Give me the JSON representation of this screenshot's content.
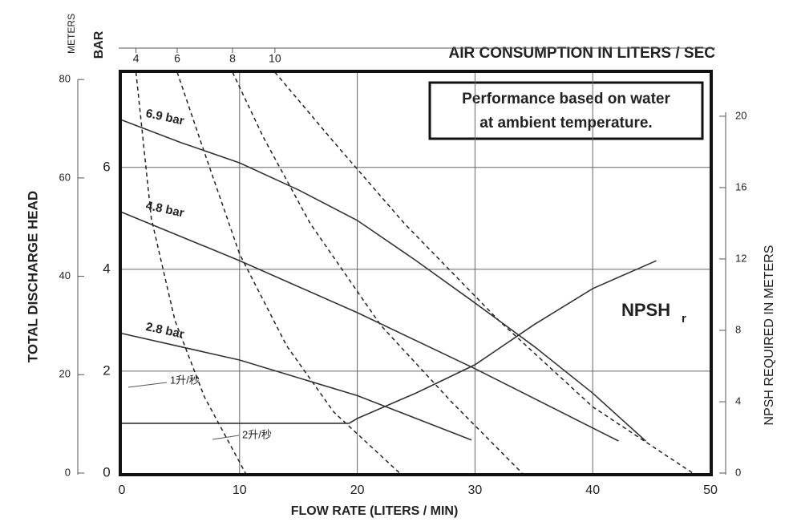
{
  "chart_data": {
    "type": "line",
    "x_title": "FLOW RATE (LITERS / MIN)",
    "y_title": "TOTAL DISCHARGE HEAD",
    "y_unit": "BAR",
    "meters_unit": "METERS",
    "y2_title": "NPSH REQUIRED IN METERS",
    "top_title": "AIR CONSUMPTION IN LITERS / SEC",
    "note": [
      "Performance based on water",
      "at ambient temperature."
    ],
    "npsh_label": {
      "main": "NPSH",
      "sub": "r"
    },
    "annotations": [
      "1升/秒",
      "2升/秒"
    ],
    "xlim": [
      0,
      50
    ],
    "xticks": [
      0,
      10,
      20,
      30,
      40,
      50
    ],
    "ylim": [
      0,
      7.87
    ],
    "yticks": [
      0,
      2,
      4,
      6
    ],
    "meters_lim": [
      0,
      81.5
    ],
    "meters_ticks": [
      0,
      20,
      40,
      60,
      80
    ],
    "y2lim": [
      0,
      22.47
    ],
    "y2ticks": [
      0,
      4,
      8,
      12,
      16,
      20
    ],
    "grid": true,
    "series": [
      {
        "name": "6.9 bar",
        "color": "#333333",
        "x": [
          0,
          5,
          10,
          15,
          20,
          25,
          30,
          35,
          40,
          44.5
        ],
        "values": [
          6.93,
          6.49,
          6.09,
          5.56,
          4.96,
          4.17,
          3.34,
          2.49,
          1.57,
          0.63
        ]
      },
      {
        "name": "4.8 bar",
        "color": "#333333",
        "x": [
          0,
          10,
          20,
          30,
          42.2
        ],
        "values": [
          5.12,
          4.17,
          3.15,
          2.05,
          0.63
        ]
      },
      {
        "name": "2.8 bar",
        "color": "#333333",
        "x": [
          0,
          10,
          20,
          29.7
        ],
        "values": [
          2.74,
          2.22,
          1.52,
          0.65
        ]
      },
      {
        "name": "NPSH",
        "color": "#333333",
        "axis": "y2",
        "x": [
          0,
          19.3,
          20,
          25,
          30,
          35,
          40,
          45.4
        ],
        "values": [
          2.79,
          2.79,
          3.06,
          4.49,
          6.07,
          8.31,
          10.34,
          11.9
        ]
      }
    ],
    "air_curves": [
      {
        "air": 4,
        "x": [
          1.2,
          2.5,
          4.5,
          7,
          10.5
        ],
        "values": [
          7.87,
          5,
          3,
          1.5,
          0
        ]
      },
      {
        "air": 6,
        "x": [
          4.7,
          7,
          10,
          14,
          18,
          23.6
        ],
        "values": [
          7.87,
          6.3,
          4.3,
          2.5,
          1.2,
          0
        ]
      },
      {
        "air": 8,
        "x": [
          9.4,
          12,
          16,
          22,
          28,
          34
        ],
        "values": [
          7.87,
          6.6,
          4.9,
          2.9,
          1.4,
          0
        ]
      },
      {
        "air": 10,
        "x": [
          13,
          18,
          24,
          32,
          40,
          48.5
        ],
        "values": [
          7.87,
          6.5,
          4.9,
          3,
          1.3,
          0
        ]
      }
    ]
  }
}
